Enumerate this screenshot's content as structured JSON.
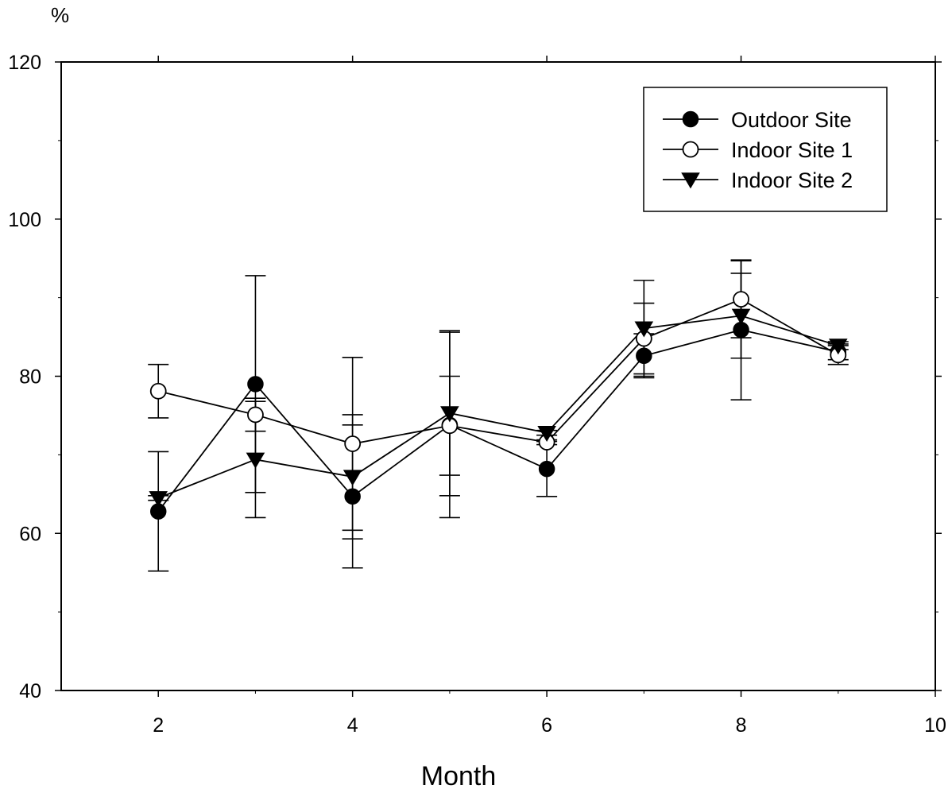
{
  "chart_data": {
    "type": "line",
    "title": "",
    "xlabel": "Month",
    "ylabel": "%",
    "xlim": [
      1,
      10
    ],
    "ylim": [
      40,
      120
    ],
    "xticks": [
      2,
      4,
      6,
      8,
      10
    ],
    "yticks": [
      40,
      60,
      80,
      100,
      120
    ],
    "x_minor_ticks": [
      3,
      5,
      7,
      9
    ],
    "y_minor_ticks": [
      50,
      70,
      90,
      110
    ],
    "grid": false,
    "legend_position": "top-right",
    "error_bars": true,
    "series": [
      {
        "name": "Outdoor Site",
        "marker": "filled-circle",
        "x": [
          2,
          3,
          4,
          5,
          6,
          7,
          8,
          9
        ],
        "y": [
          62.8,
          79.0,
          64.7,
          73.8,
          68.2,
          82.6,
          85.9,
          83.1
        ],
        "yerr": [
          7.6,
          13.8,
          9.1,
          11.8,
          3.5,
          2.8,
          8.9,
          1.0
        ]
      },
      {
        "name": "Indoor Site 1",
        "marker": "open-circle",
        "x": [
          2,
          3,
          4,
          5,
          6,
          7,
          8,
          9
        ],
        "y": [
          78.1,
          75.1,
          71.4,
          73.7,
          71.6,
          84.8,
          89.8,
          82.7
        ],
        "yerr": [
          3.4,
          2.1,
          11.0,
          6.3,
          0.3,
          4.5,
          4.9,
          1.2
        ]
      },
      {
        "name": "Indoor Site 2",
        "marker": "filled-triangle-down",
        "x": [
          2,
          3,
          4,
          5,
          6,
          7,
          8,
          9
        ],
        "y": [
          64.5,
          69.4,
          67.2,
          75.3,
          72.8,
          86.1,
          87.7,
          83.9
        ],
        "yerr": [
          0.3,
          7.4,
          7.9,
          10.5,
          0.3,
          6.1,
          5.4,
          0.5
        ]
      }
    ]
  }
}
